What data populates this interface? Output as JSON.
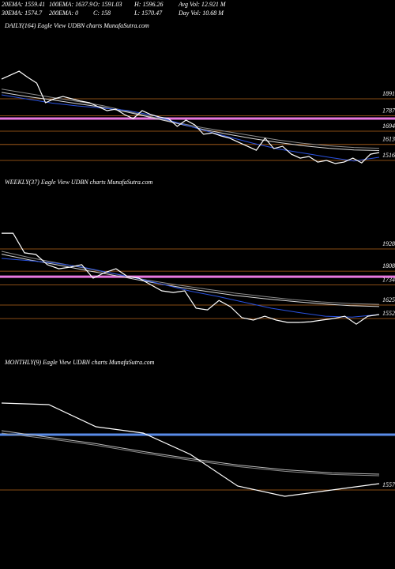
{
  "header": {
    "row1": [
      "20EMA: 1559.41",
      "100EMA: 1637.9",
      "O: 1591.03",
      "H: 1596.26",
      "Avg Vol: 12.921 M"
    ],
    "row2": [
      "30EMA: 1574.7",
      "200EMA: 0",
      "C: 158",
      "L: 1570.47",
      "Day Vol: 10.68 M"
    ]
  },
  "chart_data": [
    {
      "type": "line",
      "title": "DAILY(164) Eagle View  UDBN charts MunafaSutra.com",
      "ylim": [
        1386,
        2300
      ],
      "yticks": [
        1891,
        1787,
        1694,
        1613,
        1516
      ],
      "grid": true,
      "levels": [
        {
          "value": 1771,
          "color": "#e878e0"
        }
      ],
      "series": [
        {
          "color": "#8c8c8c",
          "values": [
            1950,
            1925,
            1900,
            1875,
            1850,
            1815,
            1780,
            1745,
            1715,
            1690,
            1665,
            1640,
            1620,
            1605,
            1595,
            1590
          ]
        },
        {
          "color": "#d8d8d8",
          "values": [
            1930,
            1905,
            1885,
            1862,
            1840,
            1810,
            1775,
            1740,
            1705,
            1675,
            1648,
            1625,
            1605,
            1590,
            1580,
            1576
          ]
        },
        {
          "color": "#2a52e0",
          "values": [
            1915,
            1890,
            1865,
            1848,
            1835,
            1820,
            1790,
            1745,
            1700,
            1660,
            1620,
            1585,
            1560,
            1535,
            1512,
            1535
          ]
        },
        {
          "color": "#ffffff",
          "values": [
            2011,
            2035,
            2059,
            2021,
            1987,
            1867,
            1891,
            1905,
            1891,
            1877,
            1867,
            1843,
            1819,
            1828,
            1795,
            1771,
            1819,
            1795,
            1780,
            1771,
            1723,
            1761,
            1732,
            1675,
            1684,
            1665,
            1651,
            1626,
            1602,
            1578,
            1651,
            1588,
            1602,
            1554,
            1530,
            1540,
            1506,
            1516,
            1497,
            1506,
            1530,
            1501,
            1554,
            1564
          ]
        }
      ]
    },
    {
      "type": "line",
      "title": "WEEKLY(37) Eagle View  UDBN charts MunafaSutra.com",
      "ylim": [
        1352,
        2248
      ],
      "yticks": [
        1928,
        1808,
        1734,
        1625,
        1552
      ],
      "grid": true,
      "levels": [
        {
          "value": 1778,
          "color": "#e878e0"
        }
      ],
      "series": [
        {
          "color": "#8c8c8c",
          "values": [
            1915,
            1880,
            1850,
            1820,
            1790,
            1760,
            1735,
            1712,
            1690,
            1672,
            1655,
            1642,
            1633,
            1629
          ]
        },
        {
          "color": "#d8d8d8",
          "values": [
            1900,
            1868,
            1840,
            1810,
            1782,
            1752,
            1725,
            1700,
            1678,
            1660,
            1645,
            1632,
            1622,
            1617
          ]
        },
        {
          "color": "#2a52e0",
          "values": [
            1877,
            1865,
            1851,
            1830,
            1800,
            1770,
            1736,
            1700,
            1672,
            1640,
            1608,
            1585,
            1565,
            1560,
            1574
          ]
        },
        {
          "color": "#ffffff",
          "values": [
            2013,
            2013,
            1907,
            1898,
            1843,
            1821,
            1830,
            1843,
            1770,
            1800,
            1821,
            1779,
            1770,
            1736,
            1702,
            1693,
            1702,
            1608,
            1599,
            1650,
            1616,
            1557,
            1544,
            1565,
            1544,
            1531,
            1531,
            1535,
            1544,
            1552,
            1565,
            1522,
            1565,
            1574
          ]
        }
      ]
    },
    {
      "type": "line",
      "title": "MONTHLY(9) Eagle View  UDBN charts MunafaSutra.com",
      "ylim": [
        1082,
        2332
      ],
      "yticks": [
        1557
      ],
      "grid": true,
      "levels": [
        {
          "value": 1907,
          "color": "#5a8ce8"
        }
      ],
      "series": [
        {
          "color": "#bbbbbb",
          "values": [
            1932,
            1890,
            1850,
            1800,
            1755,
            1715,
            1685,
            1665,
            1657
          ]
        },
        {
          "color": "#8c8c8c",
          "values": [
            1917,
            1880,
            1840,
            1790,
            1745,
            1705,
            1675,
            1655,
            1647
          ]
        },
        {
          "color": "#ffffff",
          "values": [
            2107,
            2097,
            1957,
            1917,
            1782,
            1582,
            1517,
            1557,
            1597
          ]
        }
      ]
    }
  ]
}
